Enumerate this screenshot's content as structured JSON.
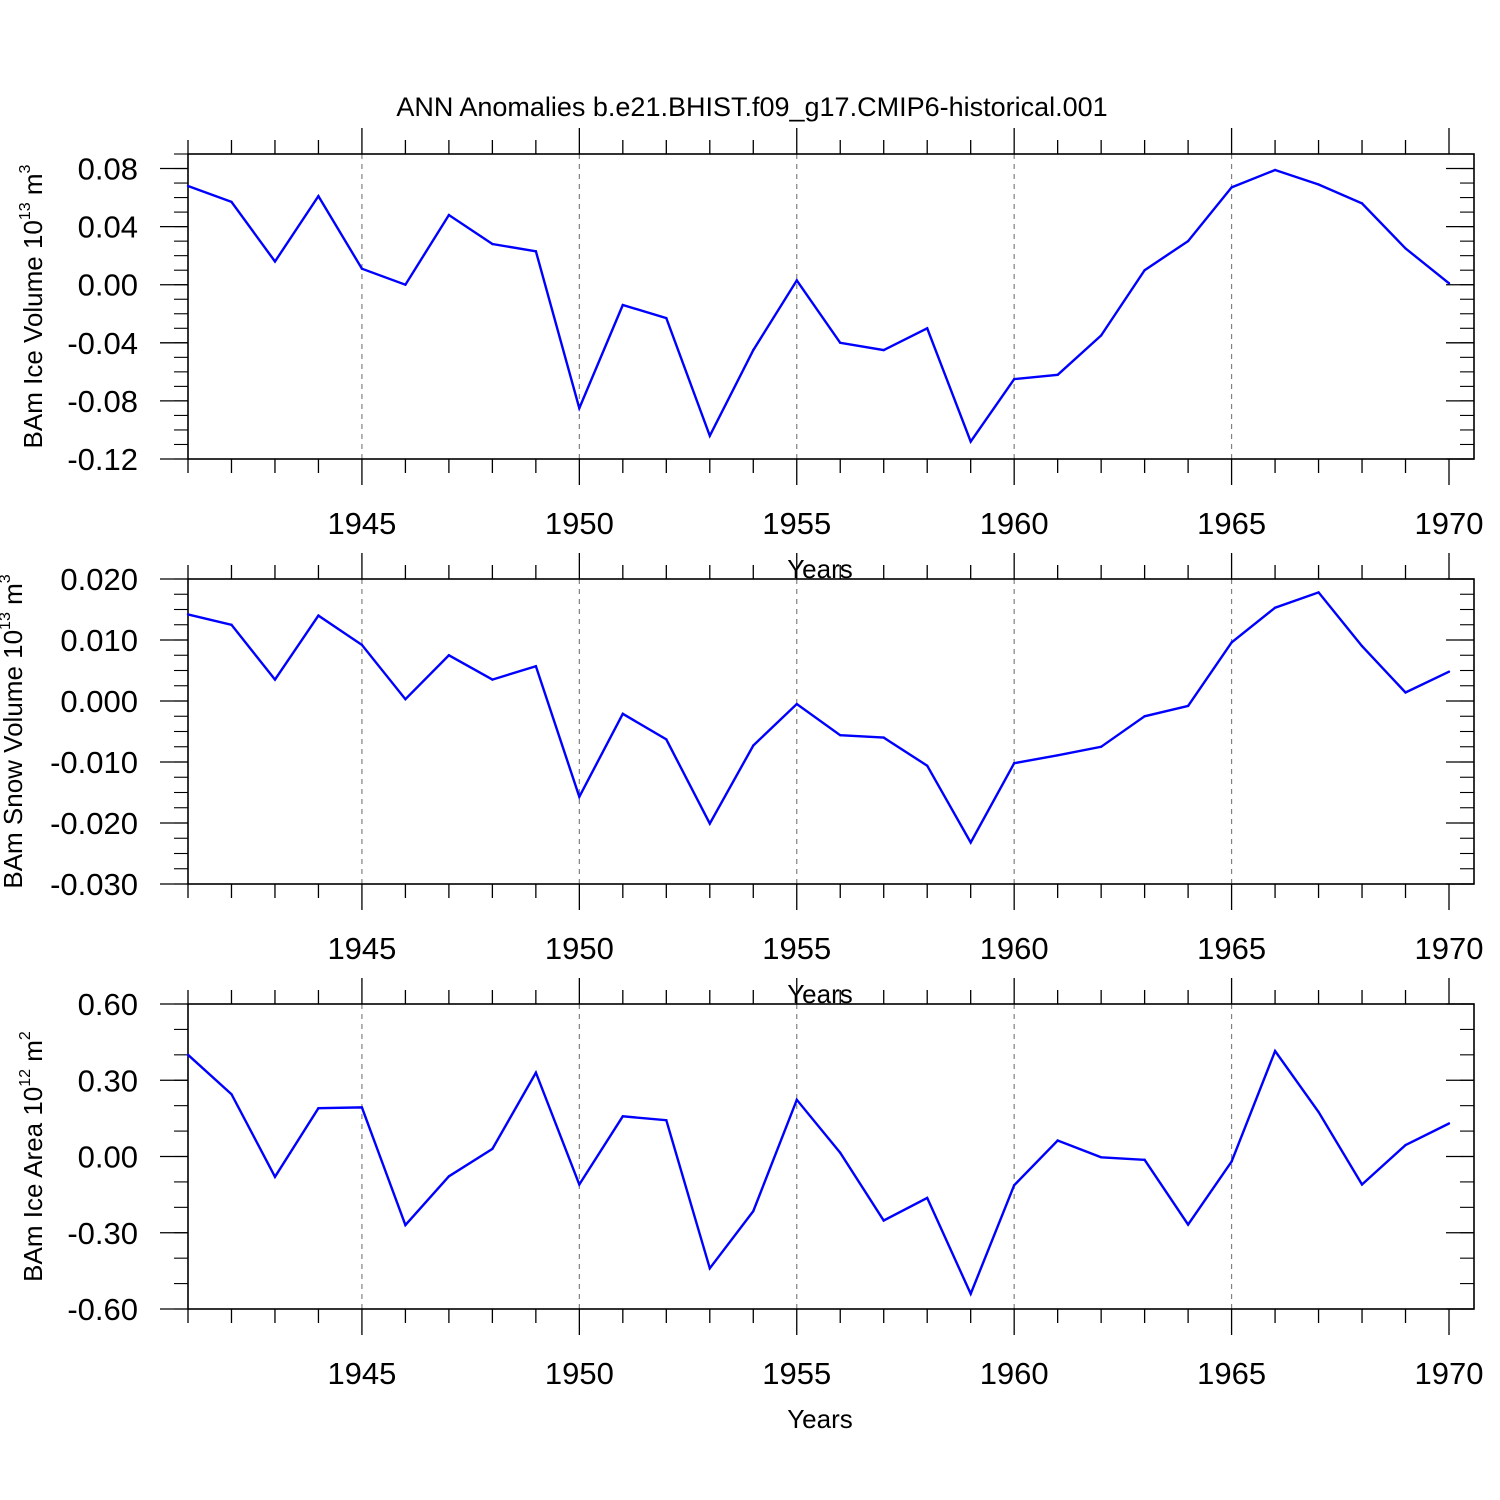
{
  "title": "ANN Anomalies b.e21.BHIST.f09_g17.CMIP6-historical.001",
  "colors": {
    "line": "#0000ff",
    "axis": "#000000",
    "grid": "#808080"
  },
  "chart_data": [
    {
      "type": "line",
      "ylabel": {
        "prefix": "BAm Ice Volume 10",
        "exponent": "13",
        "unit": "m",
        "unit_exponent": "3"
      },
      "xlabel": "Years",
      "xlim": [
        1941,
        1970
      ],
      "ylim": [
        -0.12,
        0.09
      ],
      "x_ticks": [
        1945,
        1950,
        1955,
        1960,
        1965,
        1970
      ],
      "y_ticks": [
        {
          "value": 0.08,
          "label": "0.08"
        },
        {
          "value": 0.04,
          "label": "0.04"
        },
        {
          "value": 0.0,
          "label": "0.00"
        },
        {
          "value": -0.04,
          "label": "-0.04"
        },
        {
          "value": -0.08,
          "label": "-0.08"
        },
        {
          "value": -0.12,
          "label": "-0.12"
        }
      ],
      "y_minor_step": 0.01,
      "x": [
        1941,
        1942,
        1943,
        1944,
        1945,
        1946,
        1947,
        1948,
        1949,
        1950,
        1951,
        1952,
        1953,
        1954,
        1955,
        1956,
        1957,
        1958,
        1959,
        1960,
        1961,
        1962,
        1963,
        1964,
        1965,
        1966,
        1967,
        1968,
        1969,
        1970
      ],
      "values": [
        0.068,
        0.057,
        0.016,
        0.061,
        0.011,
        0.0,
        0.048,
        0.028,
        0.023,
        -0.085,
        -0.014,
        -0.023,
        -0.104,
        -0.045,
        0.003,
        -0.04,
        -0.045,
        -0.03,
        -0.108,
        -0.065,
        -0.062,
        -0.035,
        0.01,
        0.03,
        0.067,
        0.079,
        0.069,
        0.056,
        0.025,
        0.001
      ]
    },
    {
      "type": "line",
      "ylabel": {
        "prefix": "BAm Snow Volume 10",
        "exponent": "13",
        "unit": "m",
        "unit_exponent": "3"
      },
      "xlabel": "Years",
      "xlim": [
        1941,
        1970
      ],
      "ylim": [
        -0.03,
        0.02
      ],
      "x_ticks": [
        1945,
        1950,
        1955,
        1960,
        1965,
        1970
      ],
      "y_ticks": [
        {
          "value": 0.02,
          "label": "0.020"
        },
        {
          "value": 0.01,
          "label": "0.010"
        },
        {
          "value": 0.0,
          "label": "0.000"
        },
        {
          "value": -0.01,
          "label": "-0.010"
        },
        {
          "value": -0.02,
          "label": "-0.020"
        },
        {
          "value": -0.03,
          "label": "-0.030"
        }
      ],
      "y_minor_step": 0.0025,
      "x": [
        1941,
        1942,
        1943,
        1944,
        1945,
        1946,
        1947,
        1948,
        1949,
        1950,
        1951,
        1952,
        1953,
        1954,
        1955,
        1956,
        1957,
        1958,
        1959,
        1960,
        1961,
        1962,
        1963,
        1964,
        1965,
        1966,
        1967,
        1968,
        1969,
        1970
      ],
      "values": [
        0.0142,
        0.0125,
        0.0035,
        0.014,
        0.0092,
        0.0003,
        0.0075,
        0.0035,
        0.0057,
        -0.0157,
        -0.0021,
        -0.0063,
        -0.0201,
        -0.0073,
        -0.0005,
        -0.0056,
        -0.006,
        -0.0106,
        -0.0232,
        -0.0102,
        -0.0089,
        -0.0075,
        -0.0025,
        -0.0008,
        0.0096,
        0.0153,
        0.0178,
        0.009,
        0.0014,
        0.0048
      ]
    },
    {
      "type": "line",
      "ylabel": {
        "prefix": "BAm Ice Area 10",
        "exponent": "12",
        "unit": "m",
        "unit_exponent": "2"
      },
      "xlabel": "Years",
      "xlim": [
        1941,
        1970
      ],
      "ylim": [
        -0.6,
        0.6
      ],
      "x_ticks": [
        1945,
        1950,
        1955,
        1960,
        1965,
        1970
      ],
      "y_ticks": [
        {
          "value": 0.6,
          "label": "0.60"
        },
        {
          "value": 0.3,
          "label": "0.30"
        },
        {
          "value": 0.0,
          "label": "0.00"
        },
        {
          "value": -0.3,
          "label": "-0.30"
        },
        {
          "value": -0.6,
          "label": "-0.60"
        }
      ],
      "y_minor_step": 0.1,
      "x": [
        1941,
        1942,
        1943,
        1944,
        1945,
        1946,
        1947,
        1948,
        1949,
        1950,
        1951,
        1952,
        1953,
        1954,
        1955,
        1956,
        1957,
        1958,
        1959,
        1960,
        1961,
        1962,
        1963,
        1964,
        1965,
        1966,
        1967,
        1968,
        1969,
        1970
      ],
      "values": [
        0.4,
        0.245,
        -0.08,
        0.19,
        0.193,
        -0.27,
        -0.078,
        0.03,
        0.33,
        -0.11,
        0.158,
        0.143,
        -0.44,
        -0.215,
        0.223,
        0.015,
        -0.252,
        -0.163,
        -0.54,
        -0.113,
        0.063,
        -0.003,
        -0.013,
        -0.268,
        -0.02,
        0.415,
        0.175,
        -0.11,
        0.045,
        0.13
      ]
    }
  ]
}
